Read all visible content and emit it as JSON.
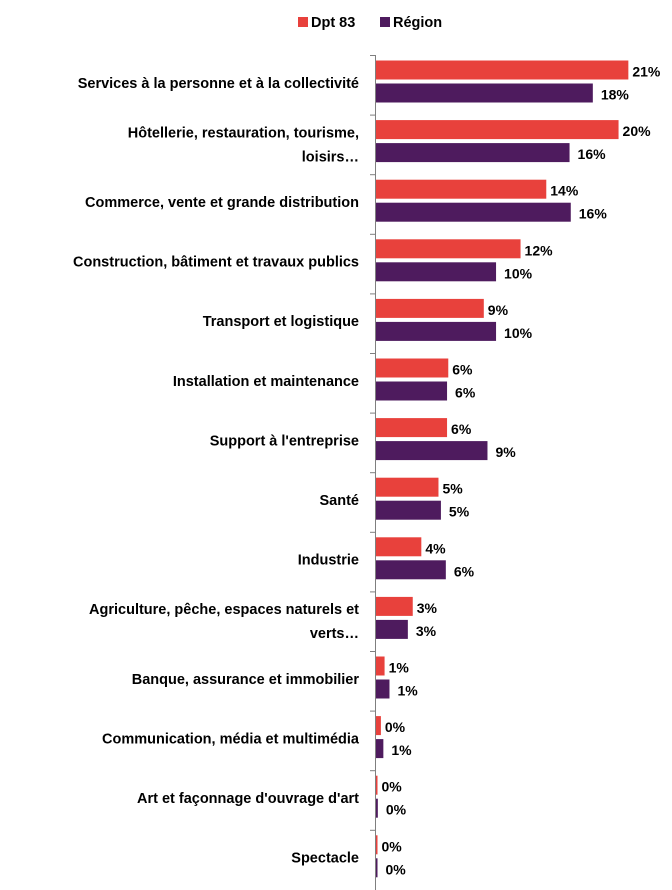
{
  "chart_data": {
    "type": "bar",
    "orientation": "horizontal",
    "legend_position": "top",
    "grid": false,
    "xlim": [
      0,
      22
    ],
    "categories": [
      [
        "Services à la personne et à la collectivité"
      ],
      [
        "Hôtellerie, restauration, tourisme,",
        "loisirs…"
      ],
      [
        "Commerce, vente et grande distribution"
      ],
      [
        "Construction, bâtiment et travaux publics"
      ],
      [
        "Transport et logistique"
      ],
      [
        "Installation et maintenance"
      ],
      [
        "Support à l'entreprise"
      ],
      [
        "Santé"
      ],
      [
        "Industrie"
      ],
      [
        "Agriculture, pêche, espaces naturels et",
        "verts…"
      ],
      [
        "Banque, assurance et immobilier"
      ],
      [
        "Communication, média et multimédia"
      ],
      [
        "Art et façonnage d'ouvrage d'art"
      ],
      [
        "Spectacle"
      ]
    ],
    "series": [
      {
        "name": "Dpt 83",
        "color": "#E8413C",
        "values": [
          20.6,
          19.8,
          13.9,
          11.8,
          8.8,
          5.9,
          5.8,
          5.1,
          3.7,
          3.0,
          0.7,
          0.4,
          0.1,
          0.1
        ],
        "labels": [
          "21%",
          "20%",
          "14%",
          "12%",
          "9%",
          "6%",
          "6%",
          "5%",
          "4%",
          "3%",
          "1%",
          "0%",
          "0%",
          "0%"
        ]
      },
      {
        "name": "Région",
        "color": "#4E1B5E",
        "values": [
          17.7,
          15.8,
          15.9,
          9.8,
          9.8,
          5.8,
          9.1,
          5.3,
          5.7,
          2.6,
          1.1,
          0.6,
          0.15,
          0.1
        ],
        "labels": [
          "18%",
          "16%",
          "16%",
          "10%",
          "10%",
          "6%",
          "9%",
          "5%",
          "6%",
          "3%",
          "1%",
          "1%",
          "0%",
          "0%"
        ]
      }
    ]
  }
}
